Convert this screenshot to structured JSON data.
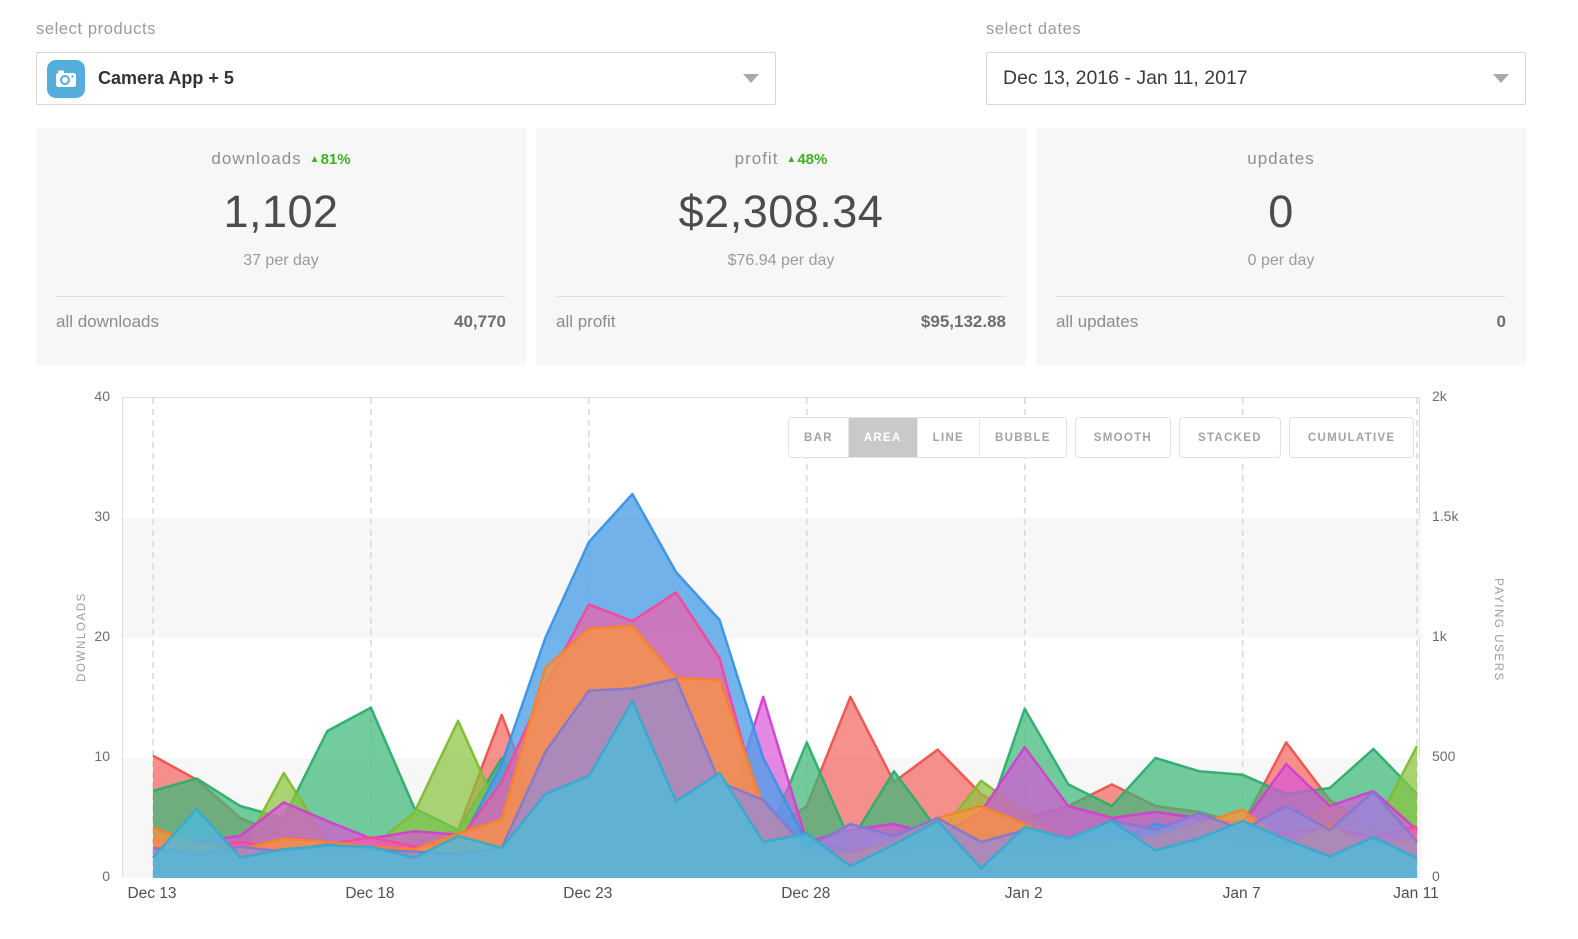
{
  "products_select": {
    "label": "select products",
    "value": "Camera App + 5",
    "icon": "camera-app-icon"
  },
  "dates_select": {
    "label": "select dates",
    "value": "Dec 13, 2016 - Jan 11, 2017"
  },
  "stats": [
    {
      "title": "downloads",
      "delta": "81%",
      "delta_dir": "up",
      "value": "1,102",
      "per_day": "37 per day",
      "total_label": "all downloads",
      "total_value": "40,770"
    },
    {
      "title": "profit",
      "delta": "48%",
      "delta_dir": "up",
      "value": "$2,308.34",
      "per_day": "$76.94 per day",
      "total_label": "all profit",
      "total_value": "$95,132.88"
    },
    {
      "title": "updates",
      "delta": "",
      "delta_dir": "",
      "value": "0",
      "per_day": "0 per day",
      "total_label": "all updates",
      "total_value": "0"
    }
  ],
  "chart_buttons": {
    "group": [
      "BAR",
      "AREA",
      "LINE",
      "BUBBLE"
    ],
    "selected": "AREA",
    "extras": [
      "SMOOTH",
      "STACKED",
      "CUMULATIVE"
    ],
    "selected_bg": "#c9c9c9"
  },
  "chart_data": {
    "type": "area",
    "mode": "overlapping-areas",
    "title": "",
    "left_axis": {
      "label": "DOWNLOADS",
      "ticks": [
        0,
        10,
        20,
        30,
        40
      ],
      "range": [
        0,
        40
      ]
    },
    "right_axis": {
      "label": "PAYING USERS",
      "ticks": [
        "0",
        "500",
        "1k",
        "1.5k",
        "2k"
      ],
      "range": [
        0,
        2000
      ]
    },
    "band_color": "#f7f7f7",
    "grid_dash_color": "#d9d9d9",
    "x": [
      "Dec 13",
      "Dec 14",
      "Dec 15",
      "Dec 16",
      "Dec 17",
      "Dec 18",
      "Dec 19",
      "Dec 20",
      "Dec 21",
      "Dec 22",
      "Dec 23",
      "Dec 24",
      "Dec 25",
      "Dec 26",
      "Dec 27",
      "Dec 28",
      "Dec 29",
      "Dec 30",
      "Dec 31",
      "Jan 1",
      "Jan 2",
      "Jan 3",
      "Jan 4",
      "Jan 5",
      "Jan 6",
      "Jan 7",
      "Jan 8",
      "Jan 9",
      "Jan 10",
      "Jan 11"
    ],
    "x_ticks": [
      {
        "label": "Dec 13",
        "day": 0
      },
      {
        "label": "Dec 18",
        "day": 5
      },
      {
        "label": "Dec 23",
        "day": 10
      },
      {
        "label": "Dec 28",
        "day": 15
      },
      {
        "label": "Jan 2",
        "day": 20
      },
      {
        "label": "Jan 7",
        "day": 25
      },
      {
        "label": "Jan 11",
        "day": 29
      }
    ],
    "series": [
      {
        "name": "series-red",
        "color": "#f2635d",
        "stroke": "#ee534d",
        "opacity": 0.7,
        "values": [
          10.2,
          8.2,
          5.0,
          3.5,
          3.0,
          2.5,
          3.0,
          4.0,
          13.6,
          4.0,
          3.0,
          3.0,
          3.0,
          2.5,
          3.5,
          6.0,
          15.1,
          8.0,
          10.7,
          7.0,
          5.0,
          6.0,
          7.8,
          6.0,
          5.5,
          4.5,
          11.3,
          6.5,
          4.0,
          4.3
        ]
      },
      {
        "name": "series-green",
        "color": "#3cb878",
        "stroke": "#2cae6c",
        "opacity": 0.72,
        "values": [
          7.25,
          8.3,
          6.0,
          5.0,
          12.25,
          14.2,
          5.8,
          4.0,
          10.0,
          4.0,
          2.5,
          3.0,
          2.5,
          2.0,
          2.5,
          11.3,
          3.0,
          8.9,
          4.0,
          3.5,
          14.1,
          7.8,
          6.0,
          10.0,
          8.9,
          8.6,
          7.0,
          7.5,
          10.75,
          7.0
        ]
      },
      {
        "name": "series-lime",
        "color": "#8bc53f",
        "stroke": "#7fbc2e",
        "opacity": 0.72,
        "values": [
          2.0,
          1.5,
          2.0,
          8.75,
          3.0,
          2.5,
          5.5,
          13.1,
          5.0,
          4.0,
          2.0,
          1.5,
          2.0,
          1.5,
          2.0,
          3.0,
          2.0,
          2.5,
          3.5,
          8.1,
          5.5,
          3.0,
          2.5,
          2.0,
          3.0,
          2.5,
          3.5,
          6.3,
          4.0,
          11.0
        ]
      },
      {
        "name": "series-magenta",
        "color": "#d955d8",
        "stroke": "#d23fd0",
        "opacity": 0.7,
        "values": [
          2.5,
          3.0,
          3.5,
          6.3,
          4.75,
          3.3,
          3.9,
          3.6,
          4.5,
          6.0,
          3.0,
          2.5,
          3.0,
          3.5,
          15.1,
          3.0,
          4.0,
          4.5,
          3.5,
          5.5,
          10.9,
          6.0,
          5.0,
          5.5,
          5.0,
          4.5,
          9.5,
          6.0,
          7.25,
          4.0
        ]
      },
      {
        "name": "series-blue",
        "color": "#4d9fe8",
        "stroke": "#3b93e3",
        "opacity": 0.78,
        "values": [
          2.0,
          2.4,
          1.8,
          2.2,
          2.0,
          2.4,
          1.8,
          2.5,
          9.5,
          20.0,
          28.0,
          32.0,
          25.5,
          21.5,
          10.0,
          3.0,
          2.2,
          2.0,
          2.4,
          2.0,
          2.2,
          2.0,
          2.8,
          4.5,
          3.8,
          2.5,
          2.2,
          3.0,
          2.4,
          2.6
        ]
      },
      {
        "name": "series-pink",
        "color": "#f65ba8",
        "stroke": "#f4479d",
        "opacity": 0.68,
        "values": [
          3.2,
          2.6,
          3.0,
          2.4,
          2.8,
          3.4,
          2.6,
          3.0,
          8.0,
          16.0,
          22.8,
          21.4,
          23.8,
          18.3,
          5.0,
          2.5,
          2.2,
          2.8,
          2.4,
          3.0,
          3.4,
          2.8,
          3.2,
          2.6,
          3.0,
          3.4,
          3.8,
          4.2,
          3.4,
          4.3
        ]
      },
      {
        "name": "series-orange",
        "color": "#f89440",
        "stroke": "#f6832a",
        "opacity": 0.78,
        "values": [
          4.2,
          2.8,
          2.4,
          3.3,
          3.0,
          2.6,
          2.4,
          3.7,
          4.9,
          17.5,
          20.8,
          21.0,
          16.7,
          16.5,
          6.0,
          2.2,
          2.0,
          3.0,
          5.0,
          6.0,
          4.5,
          2.5,
          3.0,
          3.4,
          4.5,
          5.7,
          2.8,
          4.3,
          2.6,
          3.3
        ]
      },
      {
        "name": "series-purple",
        "color": "#9489d8",
        "stroke": "#8578d0",
        "opacity": 0.75,
        "values": [
          2.5,
          2.0,
          2.6,
          2.2,
          2.8,
          2.4,
          2.2,
          2.0,
          2.5,
          10.5,
          15.6,
          15.8,
          16.6,
          8.0,
          6.5,
          2.5,
          4.5,
          3.5,
          5.0,
          3.0,
          4.0,
          3.0,
          4.8,
          4.0,
          5.4,
          4.0,
          6.0,
          4.0,
          7.2,
          3.0
        ]
      },
      {
        "name": "series-teal",
        "color": "#52b7d6",
        "stroke": "#35abce",
        "opacity": 0.85,
        "values": [
          1.7,
          5.75,
          1.7,
          2.4,
          2.7,
          2.6,
          1.7,
          3.5,
          2.5,
          7.0,
          8.5,
          14.75,
          6.4,
          8.75,
          3.0,
          3.7,
          1.0,
          2.8,
          4.75,
          0.8,
          4.25,
          3.3,
          4.75,
          2.3,
          3.3,
          4.75,
          3.2,
          1.8,
          3.4,
          1.65
        ]
      }
    ]
  }
}
